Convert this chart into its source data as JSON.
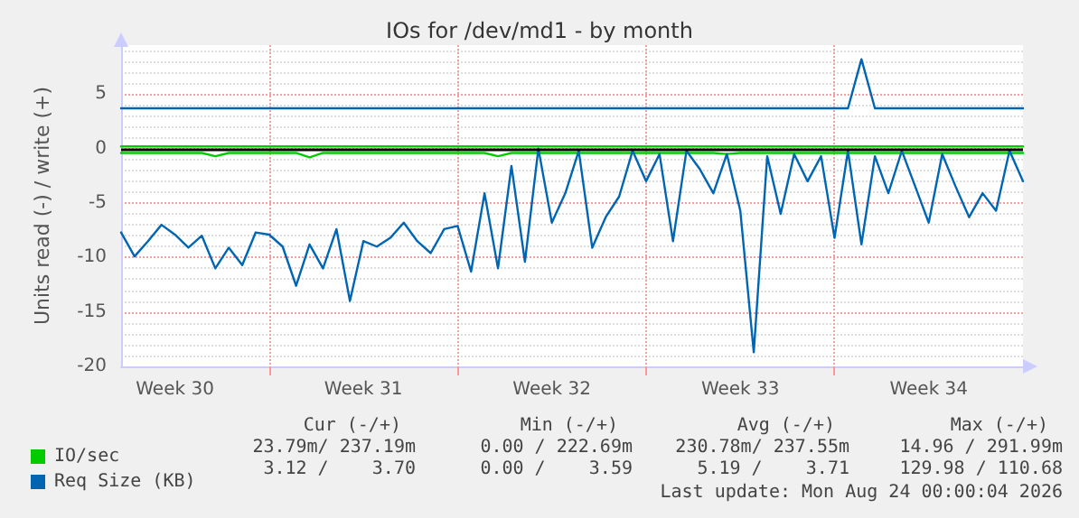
{
  "chart_data": {
    "type": "line",
    "title": "IOs for /dev/md1 - by month",
    "ylabel": "Units read (-) / write (+)",
    "categories": [
      null,
      null,
      null,
      null,
      "Week 30",
      null,
      null,
      null,
      null,
      null,
      null,
      null,
      null,
      null,
      null,
      null,
      null,
      null,
      "Week 31",
      null,
      null,
      null,
      null,
      null,
      null,
      null,
      null,
      null,
      null,
      null,
      null,
      null,
      "Week 32",
      null,
      null,
      null,
      null,
      null,
      null,
      null,
      null,
      null,
      null,
      null,
      null,
      null,
      "Week 33",
      null,
      null,
      null,
      null,
      null,
      null,
      null,
      null,
      null,
      null,
      null,
      null,
      null,
      "Week 34",
      null,
      null,
      null,
      null,
      null,
      null,
      null
    ],
    "ylim": [
      -20,
      9.5
    ],
    "yticks": [
      -20,
      -15,
      -10,
      -5,
      0,
      5
    ],
    "grid": true,
    "legend": "bottom left",
    "marker": "none",
    "line_style": "solid",
    "ref_lines": [
      {
        "axis": "y",
        "value": 0,
        "label": null,
        "color": "#000000"
      }
    ],
    "series": [
      {
        "name": "IO/sec",
        "color": "#00cc00",
        "values": [
          0.2,
          0.2,
          0.2,
          0.2,
          0.2,
          0.2,
          0.2,
          0.2,
          0.2,
          0.2,
          0.2,
          0.2,
          0.2,
          0.2,
          0.2,
          0.2,
          0.2,
          0.2,
          0.2,
          0.2,
          0.2,
          0.2,
          0.2,
          0.2,
          0.2,
          0.2,
          0.2,
          0.2,
          0.2,
          0.2,
          0.2,
          0.2,
          0.2,
          0.2,
          0.2,
          0.2,
          0.2,
          0.2,
          0.2,
          0.2,
          0.2,
          0.2,
          0.2,
          0.2,
          0.2,
          0.2,
          0.2,
          0.2,
          0.2,
          0.2,
          0.2,
          0.2,
          0.2,
          0.2,
          0.2,
          0.2,
          0.2,
          0.2,
          0.2,
          0.2,
          0.2,
          0.2,
          0.2,
          0.2,
          0.2,
          0.2,
          0.2,
          0.2
        ]
      },
      {
        "color": "#00cc00",
        "values": [
          -0.4,
          -0.4,
          -0.4,
          -0.4,
          -0.4,
          -0.4,
          -0.4,
          -0.7,
          -0.4,
          -0.4,
          -0.4,
          -0.4,
          -0.4,
          -0.4,
          -0.8,
          -0.4,
          -0.4,
          -0.4,
          -0.4,
          -0.4,
          -0.4,
          -0.4,
          -0.4,
          -0.4,
          -0.4,
          -0.4,
          -0.4,
          -0.4,
          -0.7,
          -0.4,
          -0.4,
          -0.4,
          -0.4,
          -0.4,
          -0.4,
          -0.4,
          -0.4,
          -0.4,
          -0.4,
          -0.4,
          -0.4,
          -0.4,
          -0.4,
          -0.4,
          -0.4,
          -0.5,
          -0.4,
          -0.4,
          -0.4,
          -0.4,
          -0.4,
          -0.4,
          -0.4,
          -0.4,
          -0.4,
          -0.4,
          -0.4,
          -0.4,
          -0.4,
          -0.4,
          -0.4,
          -0.4,
          -0.4,
          -0.4,
          -0.4,
          -0.4,
          -0.4,
          -0.4
        ]
      },
      {
        "name": "Req Size (KB)",
        "color": "#0066b3",
        "values": [
          3.7,
          3.7,
          3.7,
          3.7,
          3.7,
          3.7,
          3.7,
          3.7,
          3.7,
          3.7,
          3.7,
          3.7,
          3.7,
          3.7,
          3.7,
          3.7,
          3.7,
          3.7,
          3.7,
          3.7,
          3.7,
          3.7,
          3.7,
          3.7,
          3.7,
          3.7,
          3.7,
          3.7,
          3.7,
          3.7,
          3.7,
          3.7,
          3.7,
          3.7,
          3.7,
          3.7,
          3.7,
          3.7,
          3.7,
          3.7,
          3.7,
          3.7,
          3.7,
          3.7,
          3.7,
          3.7,
          3.7,
          3.7,
          3.7,
          3.7,
          3.7,
          3.7,
          3.7,
          3.7,
          3.7,
          8.2,
          3.7,
          3.7,
          3.7,
          3.7,
          3.7,
          3.7,
          3.7,
          3.7,
          3.7,
          3.7,
          3.7,
          3.7
        ]
      },
      {
        "color": "#0066b3",
        "values": [
          -7.7,
          -9.9,
          -8.5,
          -7.0,
          -7.9,
          -9.1,
          -8.0,
          -11.0,
          -9.1,
          -10.7,
          -7.7,
          -7.9,
          -9.0,
          -12.6,
          -8.8,
          -11.0,
          -7.4,
          -14.0,
          -8.5,
          -9.0,
          -8.2,
          -6.8,
          -8.5,
          -9.6,
          -7.4,
          -7.1,
          -11.3,
          -4.1,
          -11.0,
          -1.6,
          -10.4,
          0,
          -6.8,
          -4.1,
          -0.2,
          -9.1,
          -6.3,
          -4.4,
          -0.2,
          -3.0,
          -0.5,
          -8.5,
          -0.2,
          -1.9,
          -4.1,
          -0.5,
          -5.7,
          -18.7,
          -0.7,
          -6.0,
          -0.5,
          -3.0,
          -0.7,
          -8.2,
          -0.2,
          -8.8,
          -0.7,
          -4.1,
          -0.2,
          -3.5,
          -6.8,
          -0.5,
          -3.5,
          -6.3,
          -4.1,
          -5.7,
          -0.2,
          -3.0
        ]
      }
    ],
    "annotations": [
      "Cur (-/+)",
      "Min (-/+)",
      "Avg (-/+)",
      "Max (-/+)",
      "23.79m/ 237.19m",
      "0.00 / 222.69m",
      "230.78m/ 237.55m",
      "14.96 / 291.99m",
      "3.12 /    3.70",
      "0.00 /    3.59",
      "5.19 /    3.71",
      "129.98 / 110.68",
      "Last update: Mon Aug 24 00:00:04 2026"
    ]
  }
}
